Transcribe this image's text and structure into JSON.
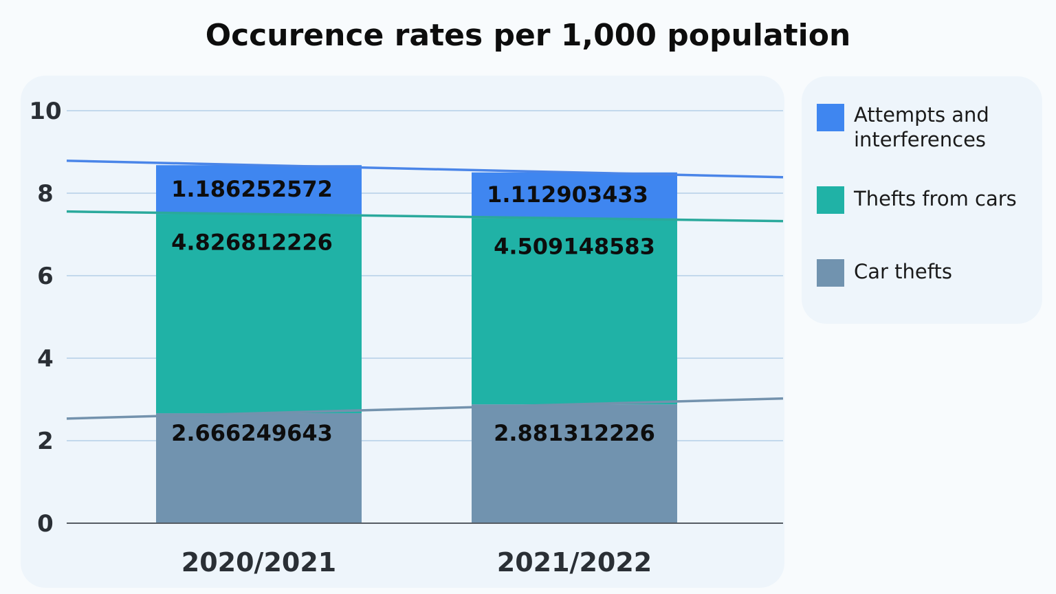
{
  "chart_data": {
    "type": "bar",
    "stacked": true,
    "title": "Occurence rates per 1,000 population",
    "categories": [
      "2020/2021",
      "2021/2022"
    ],
    "series": [
      {
        "name": "Car thefts",
        "values": [
          2.666249643,
          2.881312226
        ],
        "labels": [
          "2.666249643",
          "2.881312226"
        ],
        "color": "#7193af"
      },
      {
        "name": "Thefts from cars",
        "values": [
          4.826812226,
          4.509148583
        ],
        "labels": [
          "4.826812226",
          "4.509148583"
        ],
        "color": "#20b2a6"
      },
      {
        "name": "Attempts and interferences",
        "values": [
          1.186252572,
          1.112903433
        ],
        "labels": [
          "1.186252572",
          "1.112903433"
        ],
        "color": "#3f86f0"
      }
    ],
    "ylim": [
      0,
      10
    ],
    "yticks": [
      "0",
      "2",
      "4",
      "6",
      "8",
      "10"
    ],
    "grid": true,
    "trendlines": true,
    "legend": {
      "position": "right",
      "entries": [
        {
          "name": "Attempts and interferences",
          "color": "#3f86f0"
        },
        {
          "name": "Thefts from cars",
          "color": "#20b2a6"
        },
        {
          "name": "Car thefts",
          "color": "#7193af"
        }
      ]
    }
  },
  "colors": {
    "gridline": "#a9c8e3",
    "axis": "#555b63",
    "trend_attempts": "#4a85e8",
    "trend_thefts_from": "#2aa99c",
    "trend_car": "#7392ad"
  }
}
